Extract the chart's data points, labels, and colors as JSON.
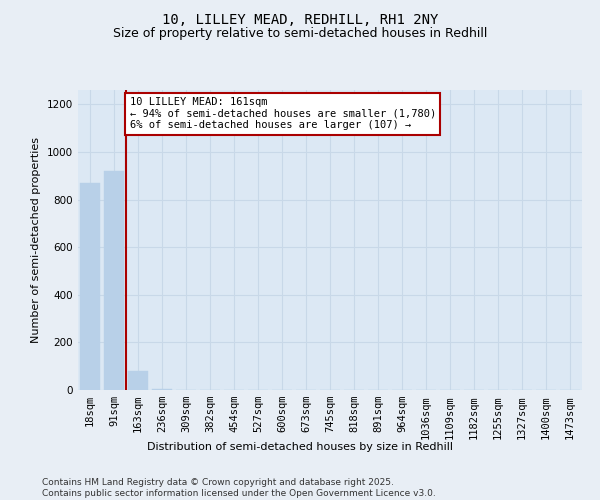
{
  "title_line1": "10, LILLEY MEAD, REDHILL, RH1 2NY",
  "title_line2": "Size of property relative to semi-detached houses in Redhill",
  "xlabel": "Distribution of semi-detached houses by size in Redhill",
  "ylabel": "Number of semi-detached properties",
  "annotation_title": "10 LILLEY MEAD: 161sqm",
  "annotation_line2": "← 94% of semi-detached houses are smaller (1,780)",
  "annotation_line3": "6% of semi-detached houses are larger (107) →",
  "footer_line1": "Contains HM Land Registry data © Crown copyright and database right 2025.",
  "footer_line2": "Contains public sector information licensed under the Open Government Licence v3.0.",
  "categories": [
    "18sqm",
    "91sqm",
    "163sqm",
    "236sqm",
    "309sqm",
    "382sqm",
    "454sqm",
    "527sqm",
    "600sqm",
    "673sqm",
    "745sqm",
    "818sqm",
    "891sqm",
    "964sqm",
    "1036sqm",
    "1109sqm",
    "1182sqm",
    "1255sqm",
    "1327sqm",
    "1400sqm",
    "1473sqm"
  ],
  "values": [
    870,
    920,
    80,
    3,
    2,
    1,
    1,
    0,
    0,
    0,
    0,
    0,
    0,
    0,
    0,
    0,
    0,
    0,
    0,
    0,
    0
  ],
  "bar_color": "#b8d0e8",
  "marker_bin_index": 2,
  "marker_color": "#aa0000",
  "ylim": [
    0,
    1260
  ],
  "yticks": [
    0,
    200,
    400,
    600,
    800,
    1000,
    1200
  ],
  "background_color": "#e8eef5",
  "plot_bg_color": "#dce8f4",
  "annotation_box_color": "#ffffff",
  "annotation_border_color": "#aa0000",
  "title_fontsize": 10,
  "subtitle_fontsize": 9,
  "axis_label_fontsize": 8,
  "ylabel_fontsize": 8,
  "tick_fontsize": 7.5,
  "footer_fontsize": 6.5
}
